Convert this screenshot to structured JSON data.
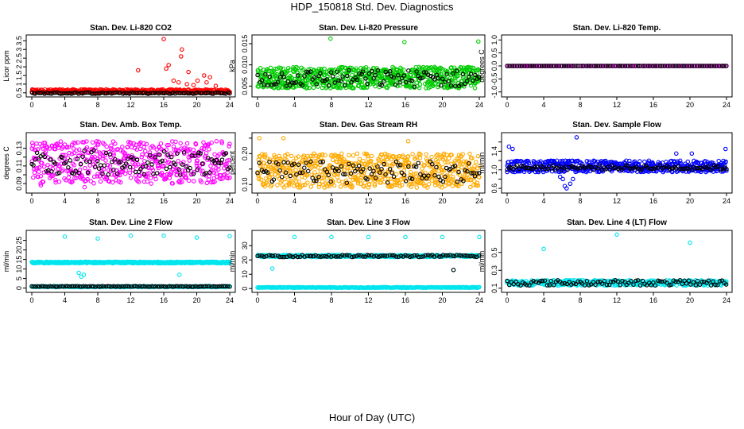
{
  "title": "HDP_150818  Std. Dev. Diagnostics",
  "xlabel": "Hour of Day (UTC)",
  "colors": {
    "co2": "#ff0000",
    "pressure": "#00cc00",
    "temp": "#ff00ff",
    "rh": "#ffaa00",
    "flow": "#0000ff",
    "line": "#00e5ee",
    "overlay": "#000000"
  },
  "chart_data": [
    {
      "type": "scatter",
      "title": "Stan. Dev. Li-820 CO2",
      "ylabel": "Licor ppm",
      "xlim": [
        0,
        24
      ],
      "xticks": [
        0,
        4,
        8,
        12,
        16,
        20,
        24
      ],
      "ylim": [
        0.4,
        3.7
      ],
      "yticks": [
        0.5,
        1,
        1.5,
        2,
        2.5,
        3,
        3.5
      ],
      "ytick_labels": [
        "0.5",
        "1",
        "1.5",
        "2",
        "2.5",
        "3",
        "3.5"
      ],
      "series": [
        {
          "color_key": "co2",
          "band": [
            0.5,
            0.7
          ],
          "n": 420,
          "outliers": [
            [
              16.0,
              3.6
            ],
            [
              18.2,
              3.0
            ],
            [
              18.1,
              2.6
            ],
            [
              16.6,
              2.1
            ],
            [
              16.3,
              1.9
            ],
            [
              12.9,
              1.8
            ],
            [
              19.0,
              1.7
            ],
            [
              20.9,
              1.5
            ],
            [
              21.6,
              1.4
            ],
            [
              17.2,
              1.2
            ],
            [
              17.8,
              1.1
            ],
            [
              18.8,
              1.0
            ],
            [
              20.1,
              1.2
            ],
            [
              21.2,
              1.1
            ],
            [
              19.6,
              0.95
            ],
            [
              22.3,
              0.9
            ]
          ]
        },
        {
          "color_key": "overlay",
          "band": [
            0.44,
            0.52
          ],
          "n": 110,
          "outliers": []
        }
      ]
    },
    {
      "type": "scatter",
      "title": "Stan. Dev. Li-820 Pressure",
      "ylabel": "kPa",
      "xlim": [
        0,
        24
      ],
      "xticks": [
        0,
        4,
        8,
        12,
        16,
        20,
        24
      ],
      "ylim": [
        0.003,
        0.0165
      ],
      "yticks": [
        0.005,
        0.01,
        0.015
      ],
      "ytick_labels": [
        "0.005",
        "0.010",
        "0.015"
      ],
      "series": [
        {
          "color_key": "pressure",
          "band": [
            0.0045,
            0.0095
          ],
          "n": 700,
          "outliers": [
            [
              7.9,
              0.0162
            ],
            [
              15.9,
              0.0154
            ],
            [
              23.9,
              0.0155
            ]
          ]
        },
        {
          "color_key": "overlay",
          "band": [
            0.0048,
            0.0088
          ],
          "n": 110,
          "outliers": []
        }
      ]
    },
    {
      "type": "scatter",
      "title": "Stan. Dev. Li-820 Temp.",
      "ylabel": "degrees C",
      "xlim": [
        0,
        24
      ],
      "xticks": [
        0,
        4,
        8,
        12,
        16,
        20,
        24
      ],
      "ylim": [
        -1.1,
        1.1
      ],
      "yticks": [
        -1,
        -0.5,
        0,
        0.5,
        1
      ],
      "ytick_labels": [
        "-1.0",
        "-0.5",
        "0.0",
        "0.5",
        "1.0"
      ],
      "series": [
        {
          "color_key": "temp",
          "band": [
            0.0,
            0.0
          ],
          "n": 140,
          "outliers": []
        },
        {
          "color_key": "overlay",
          "band": [
            0.0,
            0.0
          ],
          "n": 90,
          "outliers": []
        }
      ]
    },
    {
      "type": "scatter",
      "title": "Stan. Dev. Amb. Box Temp.",
      "ylabel": "degrees C",
      "xlim": [
        0,
        24
      ],
      "xticks": [
        0,
        4,
        8,
        12,
        16,
        20,
        24
      ],
      "ylim": [
        0.082,
        0.145
      ],
      "yticks": [
        0.09,
        0.1,
        0.11,
        0.12,
        0.13
      ],
      "ytick_labels": [
        "0.09",
        "",
        "0.11",
        "",
        "0.13"
      ],
      "series": [
        {
          "color_key": "temp",
          "band": [
            0.09,
            0.138
          ],
          "n": 520,
          "outliers": [
            [
              1.1,
              0.088
            ],
            [
              6.4,
              0.086
            ]
          ]
        },
        {
          "color_key": "overlay",
          "band": [
            0.1,
            0.128
          ],
          "n": 110,
          "outliers": []
        }
      ]
    },
    {
      "type": "scatter",
      "title": "Stan. Dev. Gas Stream RH",
      "ylabel": "percent",
      "xlim": [
        0,
        24
      ],
      "xticks": [
        0,
        4,
        8,
        12,
        16,
        20,
        24
      ],
      "ylim": [
        0.08,
        0.26
      ],
      "yticks": [
        0.1,
        0.15,
        0.2,
        0.25
      ],
      "ytick_labels": [
        "0.10",
        "",
        "0.20",
        ""
      ],
      "series": [
        {
          "color_key": "rh",
          "band": [
            0.09,
            0.2
          ],
          "n": 650,
          "outliers": [
            [
              0.2,
              0.25
            ],
            [
              2.8,
              0.25
            ],
            [
              16.3,
              0.24
            ]
          ]
        },
        {
          "color_key": "overlay",
          "band": [
            0.105,
            0.175
          ],
          "n": 110,
          "outliers": []
        }
      ]
    },
    {
      "type": "scatter",
      "title": "Stan. Dev. Sample Flow",
      "ylabel": "ml/min",
      "xlim": [
        0,
        24
      ],
      "xticks": [
        0,
        4,
        8,
        12,
        16,
        20,
        24
      ],
      "ylim": [
        0.55,
        1.75
      ],
      "yticks": [
        0.6,
        0.8,
        1.0,
        1.2,
        1.4,
        1.6
      ],
      "ytick_labels": [
        "0.6",
        "",
        "1.0",
        "",
        "1.4",
        ""
      ],
      "series": [
        {
          "color_key": "flow",
          "band": [
            0.95,
            1.2
          ],
          "n": 520,
          "outliers": [
            [
              7.6,
              1.7
            ],
            [
              6.3,
              0.65
            ],
            [
              6.5,
              0.6
            ],
            [
              6.9,
              0.7
            ],
            [
              6.1,
              0.8
            ],
            [
              5.8,
              0.85
            ],
            [
              7.2,
              0.8
            ],
            [
              0.2,
              1.5
            ],
            [
              0.6,
              1.45
            ],
            [
              23.9,
              1.45
            ],
            [
              18.5,
              1.35
            ],
            [
              20.2,
              1.35
            ]
          ]
        },
        {
          "color_key": "overlay",
          "band": [
            1.0,
            1.1
          ],
          "n": 110,
          "outliers": []
        }
      ]
    },
    {
      "type": "scatter",
      "title": "Stan. Dev. Line 2 Flow",
      "ylabel": "ml/min",
      "xlim": [
        0,
        24
      ],
      "xticks": [
        0,
        4,
        8,
        12,
        16,
        20,
        24
      ],
      "ylim": [
        -1,
        29
      ],
      "yticks": [
        0,
        5,
        10,
        15,
        20,
        25
      ],
      "ytick_labels": [
        "0",
        "5",
        "10",
        "15",
        "20",
        "25"
      ],
      "series": [
        {
          "color_key": "line",
          "band": [
            13.0,
            13.8
          ],
          "n": 480,
          "outliers": [
            [
              4.0,
              27
            ],
            [
              8.0,
              26
            ],
            [
              12.0,
              27.5
            ],
            [
              16.0,
              27.5
            ],
            [
              20.0,
              26.5
            ],
            [
              24.0,
              27.2
            ],
            [
              5.7,
              8
            ],
            [
              6.0,
              6
            ],
            [
              6.3,
              7
            ],
            [
              17.9,
              7
            ]
          ]
        },
        {
          "color_key": "line",
          "band": [
            0.5,
            1.0
          ],
          "n": 300,
          "outliers": []
        },
        {
          "color_key": "overlay",
          "band": [
            0.7,
            1.0
          ],
          "n": 100,
          "outliers": []
        }
      ]
    },
    {
      "type": "scatter",
      "title": "Stan. Dev. Line 3 Flow",
      "ylabel": "ml/min",
      "xlim": [
        0,
        24
      ],
      "xticks": [
        0,
        4,
        8,
        12,
        16,
        20,
        24
      ],
      "ylim": [
        -1,
        39
      ],
      "yticks": [
        0,
        10,
        20,
        30
      ],
      "ytick_labels": [
        "0",
        "10",
        "20",
        "30"
      ],
      "series": [
        {
          "color_key": "line",
          "band": [
            22.0,
            23.5
          ],
          "n": 420,
          "outliers": [
            [
              4.0,
              36
            ],
            [
              8.0,
              36
            ],
            [
              12.0,
              36
            ],
            [
              16.0,
              36
            ],
            [
              20.0,
              36
            ],
            [
              24.0,
              36
            ],
            [
              1.6,
              14
            ],
            [
              21.2,
              13
            ]
          ]
        },
        {
          "color_key": "line",
          "band": [
            0.5,
            1.0
          ],
          "n": 300,
          "outliers": []
        },
        {
          "color_key": "overlay",
          "band": [
            22.0,
            23.5
          ],
          "n": 100,
          "outliers": [
            [
              21.2,
              13
            ]
          ]
        }
      ]
    },
    {
      "type": "scatter",
      "title": "Stan. Dev. Line 4 (LT) Flow",
      "ylabel": "ml/min",
      "xlim": [
        0,
        24
      ],
      "xticks": [
        0,
        4,
        8,
        12,
        16,
        20,
        24
      ],
      "ylim": [
        0.08,
        0.72
      ],
      "yticks": [
        0.1,
        0.3,
        0.5
      ],
      "ytick_labels": [
        "0.1",
        "0.3",
        "0.5"
      ],
      "series": [
        {
          "color_key": "line",
          "band": [
            0.13,
            0.19
          ],
          "n": 430,
          "outliers": [
            [
              4.0,
              0.54
            ],
            [
              12.0,
              0.7
            ],
            [
              20.0,
              0.61
            ]
          ]
        },
        {
          "color_key": "overlay",
          "band": [
            0.13,
            0.19
          ],
          "n": 100,
          "outliers": []
        }
      ]
    }
  ]
}
